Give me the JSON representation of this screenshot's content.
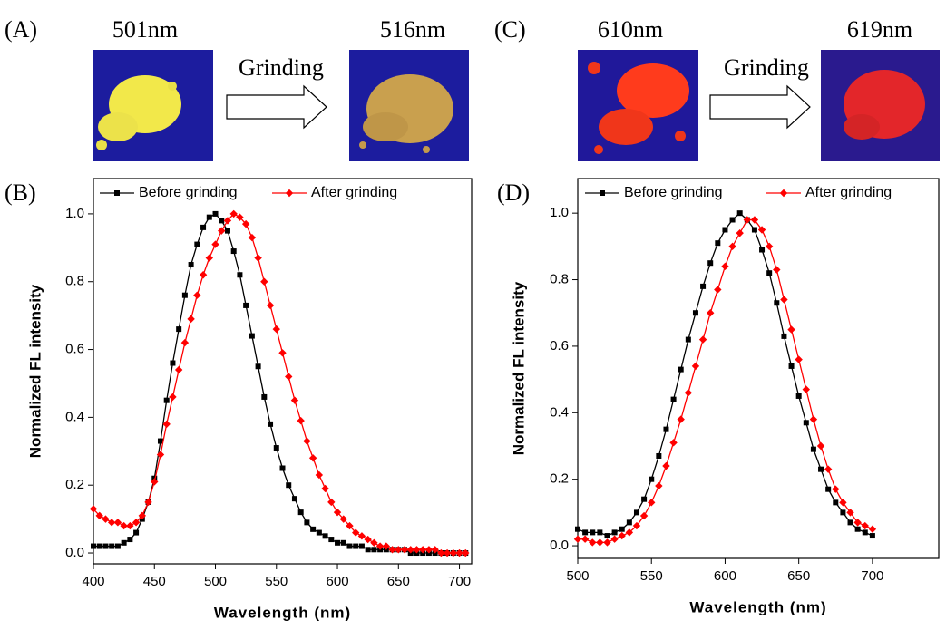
{
  "top_panels": [
    {
      "label": "(A)",
      "before": "501nm",
      "action": "Grinding",
      "after": "516nm"
    },
    {
      "label": "(C)",
      "before": "610nm",
      "action": "Grinding",
      "after": "619nm"
    }
  ],
  "chart_data": [
    {
      "type": "line",
      "label": "(B)",
      "xlabel": "Wavelength (nm)",
      "ylabel": "Normalized FL intensity",
      "legend": "top",
      "xlim": [
        400,
        710
      ],
      "ylim": [
        -0.032,
        1.104
      ],
      "xticks": [
        400,
        450,
        500,
        550,
        600,
        650,
        700
      ],
      "yticks": [
        {
          "value": 0,
          "label": "0.0"
        },
        {
          "value": 0.2,
          "label": "0.2"
        },
        {
          "value": 0.4,
          "label": "0.4"
        },
        {
          "value": 0.6,
          "label": "0.6"
        },
        {
          "value": 0.8,
          "label": "0.8"
        },
        {
          "value": 1,
          "label": "1.0"
        }
      ],
      "x": [
        400,
        405,
        410,
        415,
        420,
        425,
        430,
        435,
        440,
        445,
        450,
        455,
        460,
        465,
        470,
        475,
        480,
        485,
        490,
        495,
        500,
        505,
        510,
        515,
        520,
        525,
        530,
        535,
        540,
        545,
        550,
        555,
        560,
        565,
        570,
        575,
        580,
        585,
        590,
        595,
        600,
        605,
        610,
        615,
        620,
        625,
        630,
        635,
        640,
        645,
        650,
        655,
        660,
        665,
        670,
        675,
        680,
        685,
        690,
        695,
        700,
        705
      ],
      "series": [
        {
          "name": "Before grinding",
          "color": "#000000",
          "marker": "square",
          "values": [
            0.02,
            0.02,
            0.02,
            0.02,
            0.02,
            0.03,
            0.04,
            0.06,
            0.1,
            0.15,
            0.22,
            0.33,
            0.45,
            0.56,
            0.66,
            0.76,
            0.85,
            0.91,
            0.96,
            0.99,
            1.0,
            0.98,
            0.95,
            0.89,
            0.82,
            0.73,
            0.64,
            0.55,
            0.46,
            0.38,
            0.31,
            0.25,
            0.2,
            0.16,
            0.12,
            0.09,
            0.07,
            0.06,
            0.05,
            0.04,
            0.03,
            0.03,
            0.02,
            0.02,
            0.02,
            0.01,
            0.01,
            0.01,
            0.01,
            0.01,
            0.01,
            0.01,
            0.0,
            0.0,
            0.0,
            0.0,
            0.0,
            0.0,
            0.0,
            0.0,
            0.0,
            0.0
          ]
        },
        {
          "name": "After grinding",
          "color": "#ff0000",
          "marker": "diamond",
          "values": [
            0.13,
            0.11,
            0.1,
            0.09,
            0.09,
            0.08,
            0.08,
            0.09,
            0.11,
            0.15,
            0.21,
            0.29,
            0.38,
            0.46,
            0.54,
            0.62,
            0.69,
            0.76,
            0.82,
            0.87,
            0.91,
            0.95,
            0.98,
            1.0,
            0.99,
            0.97,
            0.93,
            0.87,
            0.8,
            0.73,
            0.66,
            0.59,
            0.52,
            0.45,
            0.39,
            0.33,
            0.28,
            0.23,
            0.19,
            0.15,
            0.12,
            0.1,
            0.08,
            0.06,
            0.05,
            0.04,
            0.03,
            0.02,
            0.02,
            0.01,
            0.01,
            0.01,
            0.01,
            0.01,
            0.01,
            0.01,
            0.01,
            0.0,
            0.0,
            0.0,
            0.0,
            0.0
          ]
        }
      ]
    },
    {
      "type": "line",
      "label": "(D)",
      "xlabel": "Wavelength (nm)",
      "ylabel": "Normalized FL intensity",
      "legend": "top",
      "xlim": [
        500,
        745
      ],
      "ylim": [
        -0.038,
        1.104
      ],
      "xticks": [
        500,
        550,
        600,
        650,
        700
      ],
      "yticks": [
        {
          "value": 0,
          "label": "0.0"
        },
        {
          "value": 0.2,
          "label": "0.2"
        },
        {
          "value": 0.4,
          "label": "0.4"
        },
        {
          "value": 0.6,
          "label": "0.6"
        },
        {
          "value": 0.8,
          "label": "0.8"
        },
        {
          "value": 1,
          "label": "1.0"
        }
      ],
      "x": [
        500,
        505,
        510,
        515,
        520,
        525,
        530,
        535,
        540,
        545,
        550,
        555,
        560,
        565,
        570,
        575,
        580,
        585,
        590,
        595,
        600,
        605,
        610,
        615,
        620,
        625,
        630,
        635,
        640,
        645,
        650,
        655,
        660,
        665,
        670,
        675,
        680,
        685,
        690,
        695,
        700
      ],
      "series": [
        {
          "name": "Before grinding",
          "color": "#000000",
          "marker": "square",
          "values": [
            0.05,
            0.04,
            0.04,
            0.04,
            0.03,
            0.04,
            0.05,
            0.07,
            0.1,
            0.14,
            0.2,
            0.27,
            0.35,
            0.44,
            0.53,
            0.62,
            0.7,
            0.78,
            0.85,
            0.91,
            0.95,
            0.98,
            1.0,
            0.98,
            0.95,
            0.89,
            0.82,
            0.73,
            0.63,
            0.54,
            0.45,
            0.37,
            0.29,
            0.23,
            0.17,
            0.13,
            0.1,
            0.07,
            0.05,
            0.04,
            0.03
          ]
        },
        {
          "name": "After grinding",
          "color": "#ff0000",
          "marker": "diamond",
          "values": [
            0.02,
            0.02,
            0.01,
            0.01,
            0.01,
            0.02,
            0.03,
            0.04,
            0.06,
            0.09,
            0.13,
            0.18,
            0.24,
            0.31,
            0.38,
            0.46,
            0.54,
            0.62,
            0.7,
            0.77,
            0.84,
            0.9,
            0.94,
            0.98,
            0.98,
            0.95,
            0.9,
            0.83,
            0.74,
            0.65,
            0.56,
            0.47,
            0.38,
            0.3,
            0.23,
            0.17,
            0.13,
            0.1,
            0.07,
            0.06,
            0.05
          ]
        }
      ]
    }
  ]
}
